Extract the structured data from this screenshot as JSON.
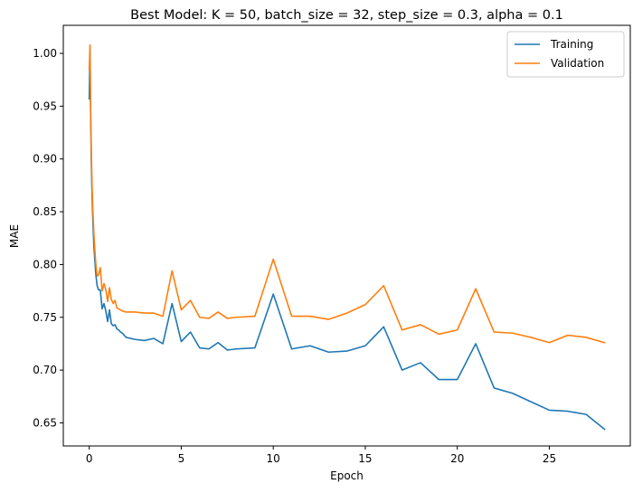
{
  "chart_data": {
    "type": "line",
    "title": "Best Model: K = 50, batch_size = 32, step_size = 0.3, alpha = 0.1",
    "xlabel": "Epoch",
    "ylabel": "MAE",
    "xlim": [
      -1.41,
      29.4
    ],
    "ylim": [
      0.6281,
      1.0266
    ],
    "xticks": [
      0,
      5,
      10,
      15,
      20,
      25
    ],
    "yticks": [
      0.65,
      0.7,
      0.75,
      0.8,
      0.85,
      0.9,
      0.95,
      1.0
    ],
    "ytick_labels": [
      "0.65",
      "0.70",
      "0.75",
      "0.80",
      "0.85",
      "0.90",
      "0.95",
      "1.00"
    ],
    "grid": false,
    "legend_position": "top-right",
    "series": [
      {
        "name": "Training",
        "color": "#1f77b4",
        "x": [
          0,
          0.04,
          0.08,
          0.12,
          0.16,
          0.2,
          0.25,
          0.3,
          0.36,
          0.43,
          0.5,
          0.6,
          0.7,
          0.8,
          0.9,
          1.0,
          1.1,
          1.2,
          1.3,
          1.4,
          1.5,
          1.6,
          1.7,
          1.8,
          2.0,
          2.5,
          3.0,
          3.5,
          4.0,
          4.5,
          5.0,
          5.5,
          6.0,
          6.5,
          7.0,
          7.5,
          8.0,
          9.0,
          10.0,
          11.0,
          12.0,
          13.0,
          14.0,
          15.0,
          16.0,
          17.0,
          18.0,
          19.0,
          20.0,
          21.0,
          22.0,
          23.0,
          24.0,
          25.0,
          26.0,
          27.0,
          28.0
        ],
        "y": [
          0.957,
          1.003,
          0.935,
          0.89,
          0.86,
          0.84,
          0.818,
          0.805,
          0.79,
          0.78,
          0.776,
          0.776,
          0.758,
          0.763,
          0.756,
          0.746,
          0.757,
          0.744,
          0.742,
          0.743,
          0.739,
          0.738,
          0.736,
          0.735,
          0.731,
          0.729,
          0.728,
          0.73,
          0.725,
          0.763,
          0.727,
          0.736,
          0.721,
          0.72,
          0.726,
          0.719,
          0.72,
          0.721,
          0.772,
          0.72,
          0.723,
          0.717,
          0.718,
          0.723,
          0.741,
          0.7,
          0.707,
          0.691,
          0.691,
          0.725,
          0.683,
          0.678,
          0.67,
          0.662,
          0.661,
          0.658,
          0.644
        ]
      },
      {
        "name": "Validation",
        "color": "#ff7f0e",
        "x": [
          0,
          0.04,
          0.08,
          0.12,
          0.16,
          0.2,
          0.25,
          0.3,
          0.36,
          0.43,
          0.5,
          0.6,
          0.7,
          0.8,
          0.9,
          1.0,
          1.1,
          1.2,
          1.3,
          1.4,
          1.5,
          1.6,
          1.7,
          1.8,
          2.0,
          2.5,
          3.0,
          3.5,
          4.0,
          4.5,
          5.0,
          5.5,
          6.0,
          6.5,
          7.0,
          7.5,
          8.0,
          9.0,
          10.0,
          11.0,
          12.0,
          13.0,
          14.0,
          15.0,
          16.0,
          17.0,
          18.0,
          19.0,
          20.0,
          21.0,
          22.0,
          23.0,
          24.0,
          25.0,
          26.0,
          27.0,
          28.0
        ],
        "y": [
          0.985,
          1.008,
          0.945,
          0.9,
          0.87,
          0.85,
          0.83,
          0.815,
          0.8,
          0.789,
          0.79,
          0.797,
          0.775,
          0.782,
          0.776,
          0.765,
          0.778,
          0.767,
          0.763,
          0.766,
          0.759,
          0.758,
          0.757,
          0.756,
          0.755,
          0.755,
          0.754,
          0.754,
          0.751,
          0.794,
          0.757,
          0.766,
          0.75,
          0.749,
          0.755,
          0.749,
          0.75,
          0.751,
          0.805,
          0.751,
          0.751,
          0.748,
          0.754,
          0.762,
          0.78,
          0.738,
          0.743,
          0.734,
          0.738,
          0.777,
          0.736,
          0.735,
          0.731,
          0.726,
          0.733,
          0.731,
          0.726
        ]
      }
    ]
  }
}
